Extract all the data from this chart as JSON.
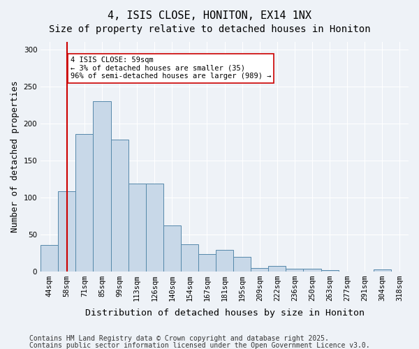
{
  "title1": "4, ISIS CLOSE, HONITON, EX14 1NX",
  "title2": "Size of property relative to detached houses in Honiton",
  "xlabel": "Distribution of detached houses by size in Honiton",
  "ylabel": "Number of detached properties",
  "footer1": "Contains HM Land Registry data © Crown copyright and database right 2025.",
  "footer2": "Contains public sector information licensed under the Open Government Licence v3.0.",
  "categories": [
    "44sqm",
    "58sqm",
    "71sqm",
    "85sqm",
    "99sqm",
    "113sqm",
    "126sqm",
    "140sqm",
    "154sqm",
    "167sqm",
    "181sqm",
    "195sqm",
    "209sqm",
    "222sqm",
    "236sqm",
    "250sqm",
    "263sqm",
    "277sqm",
    "291sqm",
    "304sqm",
    "318sqm"
  ],
  "values": [
    35,
    108,
    185,
    230,
    178,
    118,
    118,
    62,
    36,
    23,
    29,
    19,
    4,
    7,
    3,
    3,
    1,
    0,
    0,
    2,
    0
  ],
  "bar_color": "#c8d8e8",
  "bar_edge_color": "#5588aa",
  "vline_x": 1,
  "vline_color": "#cc0000",
  "annotation_text": "4 ISIS CLOSE: 59sqm\n← 3% of detached houses are smaller (35)\n96% of semi-detached houses are larger (989) →",
  "annotation_box_color": "#ffffff",
  "annotation_box_edge": "#cc0000",
  "ylim": [
    0,
    310
  ],
  "yticks": [
    0,
    50,
    100,
    150,
    200,
    250,
    300
  ],
  "bg_color": "#eef2f7",
  "plot_bg_color": "#eef2f7",
  "grid_color": "#ffffff",
  "title_fontsize": 11,
  "subtitle_fontsize": 10,
  "axis_label_fontsize": 9,
  "tick_fontsize": 7.5,
  "footer_fontsize": 7
}
